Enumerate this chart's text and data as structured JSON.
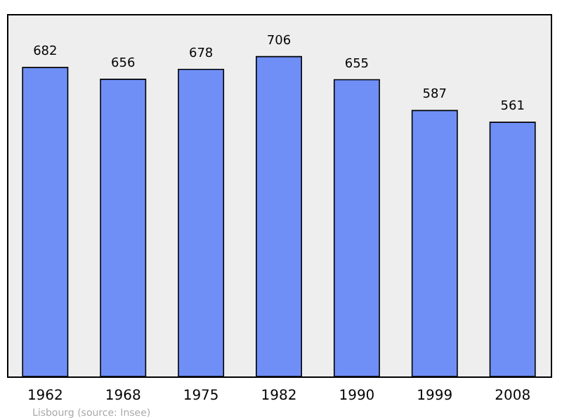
{
  "chart_data": {
    "type": "bar",
    "categories": [
      "1962",
      "1968",
      "1975",
      "1982",
      "1990",
      "1999",
      "2008"
    ],
    "values": [
      682,
      656,
      678,
      706,
      655,
      587,
      561
    ],
    "color": "#6f8ff7",
    "data_labels": true,
    "grid": false,
    "tick_labels": "x",
    "annotations": [
      "Lisbourg    (source: Insee)"
    ]
  }
}
